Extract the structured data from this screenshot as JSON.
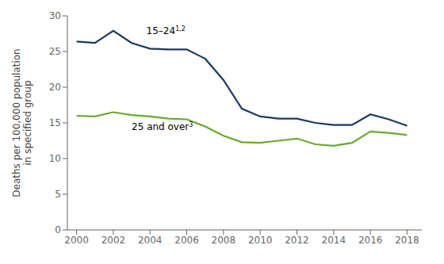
{
  "chart_data": {
    "type": "line",
    "ylabel": "Deaths per 100,000 population\nin specified group",
    "x": [
      2000,
      2001,
      2002,
      2003,
      2004,
      2005,
      2006,
      2007,
      2008,
      2009,
      2010,
      2011,
      2012,
      2013,
      2014,
      2015,
      2016,
      2017,
      2018
    ],
    "series": [
      {
        "color": "#1b3a5e",
        "values": [
          26.4,
          26.2,
          27.9,
          26.2,
          25.4,
          25.3,
          25.3,
          24.0,
          21.0,
          17.0,
          15.9,
          15.6,
          15.6,
          15.0,
          14.7,
          14.7,
          16.2,
          15.5,
          14.6
        ]
      },
      {
        "color": "#6aaa2e",
        "values": [
          16.0,
          15.9,
          16.5,
          16.1,
          15.9,
          15.6,
          15.5,
          14.5,
          13.2,
          12.3,
          12.2,
          12.5,
          12.8,
          12.0,
          11.8,
          12.2,
          13.8,
          13.6,
          13.3
        ]
      }
    ],
    "annotations": [
      {
        "text": "15–24",
        "superscript": "1,2",
        "x": 2003.8,
        "y": 27.5
      },
      {
        "text": "25 and over",
        "superscript": "3",
        "x": 2003.0,
        "y": 14.0
      }
    ],
    "xlim": [
      1999.5,
      2018.8
    ],
    "xticks": [
      2000,
      2002,
      2004,
      2006,
      2008,
      2010,
      2012,
      2014,
      2016,
      2018
    ],
    "ylim": [
      0,
      30
    ],
    "yticks": [
      0,
      5,
      10,
      15,
      20,
      25,
      30
    ],
    "grid": false
  }
}
